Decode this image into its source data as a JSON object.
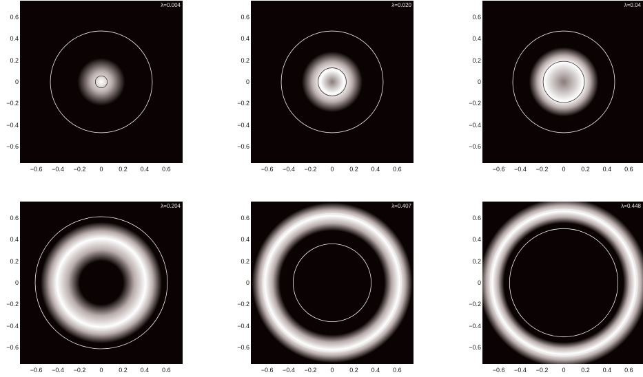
{
  "chart_data": [
    {
      "type": "heatmap",
      "lambda_label": "λ=0.004",
      "ring_inner": 0.0,
      "ring_outer": 0.22,
      "peak": 0.0,
      "inner_circle_r": 0.055,
      "outer_circle_r": 0.47,
      "xlim": [
        -0.75,
        0.75
      ],
      "ylim": [
        -0.75,
        0.75
      ],
      "ticks": [
        "−0.6",
        "−0.4",
        "−0.2",
        "0",
        "0.2",
        "0.4",
        "0.6"
      ],
      "tick_values": [
        -0.6,
        -0.4,
        -0.2,
        0,
        0.2,
        0.4,
        0.6
      ]
    },
    {
      "type": "heatmap",
      "lambda_label": "λ=0.020",
      "ring_inner": 0.0,
      "ring_outer": 0.28,
      "peak": 0.11,
      "inner_circle_r": 0.13,
      "outer_circle_r": 0.47,
      "xlim": [
        -0.75,
        0.75
      ],
      "ylim": [
        -0.75,
        0.75
      ],
      "ticks": [
        "−0.6",
        "−0.4",
        "−0.2",
        "0",
        "0.2",
        "0.4",
        "0.6"
      ],
      "tick_values": [
        -0.6,
        -0.4,
        -0.2,
        0,
        0.2,
        0.4,
        0.6
      ]
    },
    {
      "type": "heatmap",
      "lambda_label": "λ=0.04",
      "ring_inner": 0.0,
      "ring_outer": 0.32,
      "peak": 0.18,
      "inner_circle_r": 0.19,
      "outer_circle_r": 0.47,
      "xlim": [
        -0.75,
        0.75
      ],
      "ylim": [
        -0.75,
        0.75
      ],
      "ticks": [
        "−0.6",
        "−0.4",
        "−0.2",
        "0",
        "0.2",
        "0.4",
        "0.6"
      ],
      "tick_values": [
        -0.6,
        -0.4,
        -0.2,
        0,
        0.2,
        0.4,
        0.6
      ]
    },
    {
      "type": "heatmap",
      "lambda_label": "λ=0.204",
      "ring_inner": 0.2,
      "ring_outer": 0.56,
      "peak": 0.41,
      "inner_circle_r": 0.42,
      "outer_circle_r": 0.61,
      "xlim": [
        -0.75,
        0.75
      ],
      "ylim": [
        -0.75,
        0.75
      ],
      "ticks": [
        "−0.6",
        "−0.4",
        "−0.2",
        "0",
        "0.2",
        "0.4",
        "0.6"
      ],
      "tick_values": [
        -0.6,
        -0.4,
        -0.2,
        0,
        0.2,
        0.4,
        0.6
      ]
    },
    {
      "type": "heatmap",
      "lambda_label": "λ=0.407",
      "ring_inner": 0.48,
      "ring_outer": 0.74,
      "peak": 0.62,
      "inner_circle_r": 0.36,
      "outer_circle_r": 0.64,
      "xlim": [
        -0.75,
        0.75
      ],
      "ylim": [
        -0.75,
        0.75
      ],
      "ticks": [
        "−0.6",
        "−0.4",
        "−0.2",
        "0",
        "0.2",
        "0.4",
        "0.6"
      ],
      "tick_values": [
        -0.6,
        -0.4,
        -0.2,
        0,
        0.2,
        0.4,
        0.6
      ]
    },
    {
      "type": "heatmap",
      "lambda_label": "λ=0.448",
      "ring_inner": 0.55,
      "ring_outer": 0.78,
      "peak": 0.66,
      "inner_circle_r": 0.5,
      "outer_circle_r": 0.68,
      "xlim": [
        -0.75,
        0.75
      ],
      "ylim": [
        -0.75,
        0.75
      ],
      "ticks": [
        "−0.6",
        "−0.4",
        "−0.2",
        "0",
        "0.2",
        "0.4",
        "0.6"
      ],
      "tick_values": [
        -0.6,
        -0.4,
        -0.2,
        0,
        0.2,
        0.4,
        0.6
      ]
    }
  ],
  "colors": {
    "background": "#0b0303",
    "ring_peak": "#ffffff",
    "ring_mid": "#b8acab",
    "circle": "#f0f0f0"
  }
}
